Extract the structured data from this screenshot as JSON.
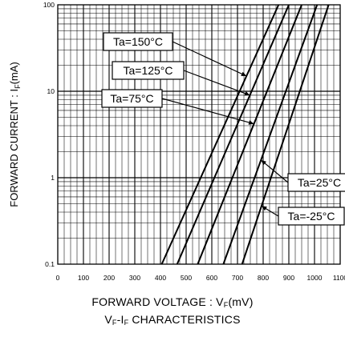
{
  "chart_data": {
    "type": "line",
    "xlim": [
      0,
      1100
    ],
    "ylim": [
      0.1,
      100
    ],
    "yscale": "log",
    "grid": true,
    "x_ticks": [
      "0",
      "100",
      "200",
      "300",
      "400",
      "500",
      "600",
      "700",
      "800",
      "900",
      "1000",
      "1100"
    ],
    "y_ticks": [
      "0.1",
      "1",
      "10",
      "100"
    ],
    "ylabel": {
      "main": "FORWARD CURRENT : I",
      "sub": "F",
      "unit": "(mA)"
    },
    "xlabel": {
      "main": "FORWARD VOLTAGE : V",
      "sub": "F",
      "unit": "(mV)"
    },
    "title": {
      "a": "V",
      "a_sub": "F",
      "mid": "-I",
      "b_sub": "F",
      "end": " CHARACTERISTICS"
    },
    "series": [
      {
        "name": "Ta=150°C",
        "x": [
          405,
          860
        ],
        "y": [
          0.1,
          100
        ]
      },
      {
        "name": "Ta=125°C",
        "x": [
          465,
          900
        ],
        "y": [
          0.1,
          100
        ]
      },
      {
        "name": "Ta=75°C",
        "x": [
          545,
          950
        ],
        "y": [
          0.1,
          100
        ]
      },
      {
        "name": "Ta=25°C",
        "x": [
          645,
          1010
        ],
        "y": [
          0.1,
          100
        ]
      },
      {
        "name": "Ta=-25°C",
        "x": [
          718,
          1055
        ],
        "y": [
          0.1,
          100
        ]
      }
    ],
    "annotations": [
      {
        "text": "Ta=150°C",
        "target_series": 0,
        "target_y": 15
      },
      {
        "text": "Ta=125°C",
        "target_series": 1,
        "target_y": 9
      },
      {
        "text": "Ta=75°C",
        "target_series": 2,
        "target_y": 4.2
      },
      {
        "text": "Ta=25°C",
        "target_series": 3,
        "target_y": 1.6
      },
      {
        "text": "Ta=-25°C",
        "target_series": 4,
        "target_y": 0.47
      }
    ]
  }
}
